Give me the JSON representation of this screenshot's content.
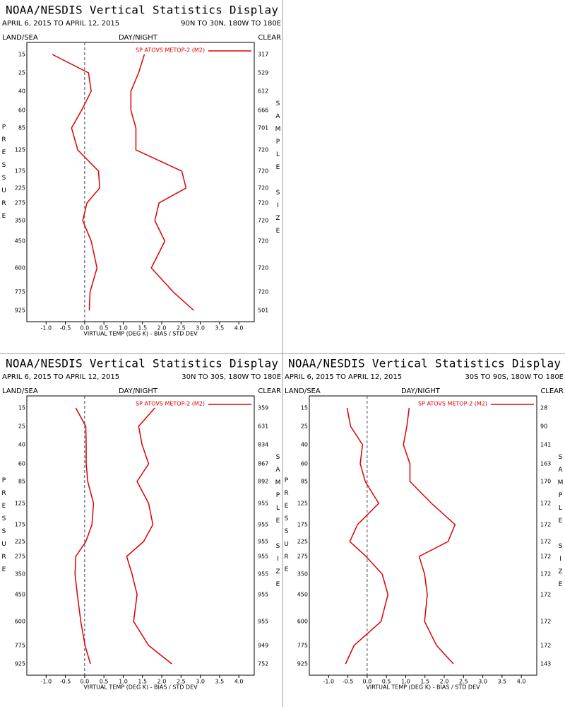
{
  "chart_data": [
    {
      "type": "line",
      "title": "NOAA/NESDIS Vertical Statistics Display",
      "subtitle": "APRIL 6, 2015 TO APRIL 12, 2015",
      "region": "90N TO 30N, 180W TO 180E",
      "left_label": "LAND/SEA",
      "center_label": "DAY/NIGHT",
      "right_label": "CLEAR",
      "y_label": "PRESSURE",
      "y2_label": "SAMPLE SIZE",
      "x_label": "VIRTUAL TEMP (DEG K) - BIAS / STD DEV",
      "categories": [
        "15",
        "25",
        "40",
        "60",
        "85",
        "125",
        "175",
        "225",
        "275",
        "350",
        "450",
        "600",
        "775",
        "925"
      ],
      "sample_size": [
        317,
        529,
        612,
        666,
        701,
        720,
        720,
        720,
        720,
        720,
        720,
        720,
        720,
        501
      ],
      "series": [
        {
          "name": "SP ATOVS METOP-2 (M2)",
          "color": "#dd0000",
          "bias": [
            -0.84,
            0.1,
            0.17,
            -0.08,
            -0.34,
            -0.18,
            0.36,
            0.39,
            0.06,
            -0.05,
            0.17,
            0.32,
            0.14,
            0.12
          ],
          "std_dev": [
            1.55,
            1.4,
            1.2,
            1.2,
            1.33,
            1.33,
            2.52,
            2.63,
            1.93,
            1.82,
            2.08,
            1.73,
            2.3,
            2.83
          ]
        }
      ],
      "xlim": [
        -1.5,
        4.4
      ],
      "xticks": [
        {
          "value": -1,
          "label": "-1.0"
        },
        -0.5,
        {
          "value": 0,
          "label": "0.0"
        },
        0.5,
        {
          "value": 1,
          "label": "1.0"
        },
        1.5,
        {
          "value": 2,
          "label": "2.0"
        },
        2.5,
        {
          "value": 3,
          "label": "3.0"
        },
        3.5,
        {
          "value": 4,
          "label": "4.0"
        }
      ]
    },
    {
      "type": "line",
      "title": "NOAA/NESDIS Vertical Statistics Display",
      "subtitle": "APRIL 6, 2015 TO APRIL 12, 2015",
      "region": "30N TO 30S, 180W TO 180E",
      "left_label": "LAND/SEA",
      "center_label": "DAY/NIGHT",
      "right_label": "CLEAR",
      "y_label": "PRESSURE",
      "y2_label": "SAMPLE SIZE",
      "x_label": "VIRTUAL TEMP (DEG K) - BIAS / STD DEV",
      "categories": [
        "15",
        "25",
        "40",
        "60",
        "85",
        "125",
        "175",
        "225",
        "275",
        "350",
        "450",
        "600",
        "775",
        "925"
      ],
      "sample_size": [
        359,
        631,
        834,
        867,
        892,
        955,
        955,
        955,
        955,
        955,
        955,
        955,
        949,
        752
      ],
      "series": [
        {
          "name": "SP ATOVS METOP-2 (M2)",
          "color": "#dd0000",
          "bias": [
            -0.23,
            0.03,
            0.04,
            0.04,
            0.08,
            0.23,
            0.19,
            0.03,
            -0.23,
            -0.25,
            -0.19,
            -0.1,
            0.01,
            0.15
          ],
          "std_dev": [
            1.82,
            1.4,
            1.49,
            1.66,
            1.36,
            1.66,
            1.77,
            1.53,
            1.09,
            1.23,
            1.36,
            1.27,
            1.66,
            2.26
          ]
        }
      ],
      "xlim": [
        -1.5,
        4.4
      ],
      "xticks": [
        {
          "value": -1,
          "label": "-1.0"
        },
        -0.5,
        {
          "value": 0,
          "label": "0.0"
        },
        0.5,
        {
          "value": 1,
          "label": "1.0"
        },
        1.5,
        {
          "value": 2,
          "label": "2.0"
        },
        2.5,
        {
          "value": 3,
          "label": "3.0"
        },
        3.5,
        {
          "value": 4,
          "label": "4.0"
        }
      ]
    },
    {
      "type": "line",
      "title": "NOAA/NESDIS Vertical Statistics Display",
      "subtitle": "APRIL 6, 2015 TO APRIL 12, 2015",
      "region": "30S TO 90S, 180W TO 180E",
      "left_label": "LAND/SEA",
      "center_label": "DAY/NIGHT",
      "right_label": "CLEAR",
      "y_label": "PRESSURE",
      "y2_label": "SAMPLE SIZE",
      "x_label": "VIRTUAL TEMP (DEG K) - BIAS / STD DEV",
      "categories": [
        "15",
        "25",
        "40",
        "60",
        "85",
        "125",
        "175",
        "225",
        "275",
        "350",
        "450",
        "600",
        "775",
        "925"
      ],
      "sample_size": [
        28,
        90,
        141,
        163,
        170,
        172,
        172,
        172,
        172,
        172,
        172,
        172,
        172,
        143
      ],
      "series": [
        {
          "name": "SP ATOVS METOP-2 (M2)",
          "color": "#dd0000",
          "bias": [
            -0.52,
            -0.43,
            -0.12,
            -0.18,
            -0.05,
            0.3,
            -0.25,
            -0.45,
            -0.03,
            0.39,
            0.54,
            0.36,
            -0.34,
            -0.56
          ],
          "std_dev": [
            1.09,
            1.03,
            0.94,
            1.11,
            1.11,
            1.67,
            2.28,
            2.1,
            1.35,
            1.49,
            1.56,
            1.49,
            1.8,
            2.24
          ]
        }
      ],
      "xlim": [
        -1.5,
        4.4
      ],
      "xticks": [
        {
          "value": -1,
          "label": "-1.0"
        },
        -0.5,
        {
          "value": 0,
          "label": "0.0"
        },
        0.5,
        {
          "value": 1,
          "label": "1.0"
        },
        1.5,
        {
          "value": 2,
          "label": "2.0"
        },
        2.5,
        {
          "value": 3,
          "label": "3.0"
        },
        3.5,
        {
          "value": 4,
          "label": "4.0"
        }
      ]
    }
  ]
}
